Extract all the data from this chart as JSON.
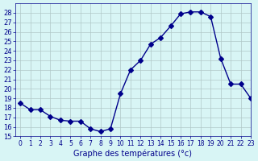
{
  "hours": [
    0,
    1,
    2,
    3,
    4,
    5,
    6,
    7,
    8,
    9,
    10,
    11,
    12,
    13,
    14,
    15,
    16,
    17,
    18,
    19,
    20,
    21,
    22,
    23
  ],
  "temperatures": [
    18.5,
    17.8,
    17.8,
    17.1,
    16.7,
    16.6,
    16.6,
    15.8,
    15.5,
    15.8,
    19.5,
    22.0,
    23.0,
    24.7,
    25.4,
    26.6,
    27.9,
    28.1,
    28.1,
    27.6,
    23.2,
    20.5,
    20.5,
    19.0
  ],
  "line_color": "#00008B",
  "marker": "D",
  "marker_size": 3,
  "background_color": "#d8f5f5",
  "grid_color": "#b0c8c8",
  "xlabel": "Graphe des températures (°c)",
  "xlabel_color": "#00008B",
  "tick_color": "#00008B",
  "ylim": [
    15,
    29
  ],
  "yticks": [
    15,
    16,
    17,
    18,
    19,
    20,
    21,
    22,
    23,
    24,
    25,
    26,
    27,
    28
  ],
  "xlim": [
    -0.5,
    23
  ],
  "xticks": [
    0,
    1,
    2,
    3,
    4,
    5,
    6,
    7,
    8,
    9,
    10,
    11,
    12,
    13,
    14,
    15,
    16,
    17,
    18,
    19,
    20,
    21,
    22,
    23
  ]
}
